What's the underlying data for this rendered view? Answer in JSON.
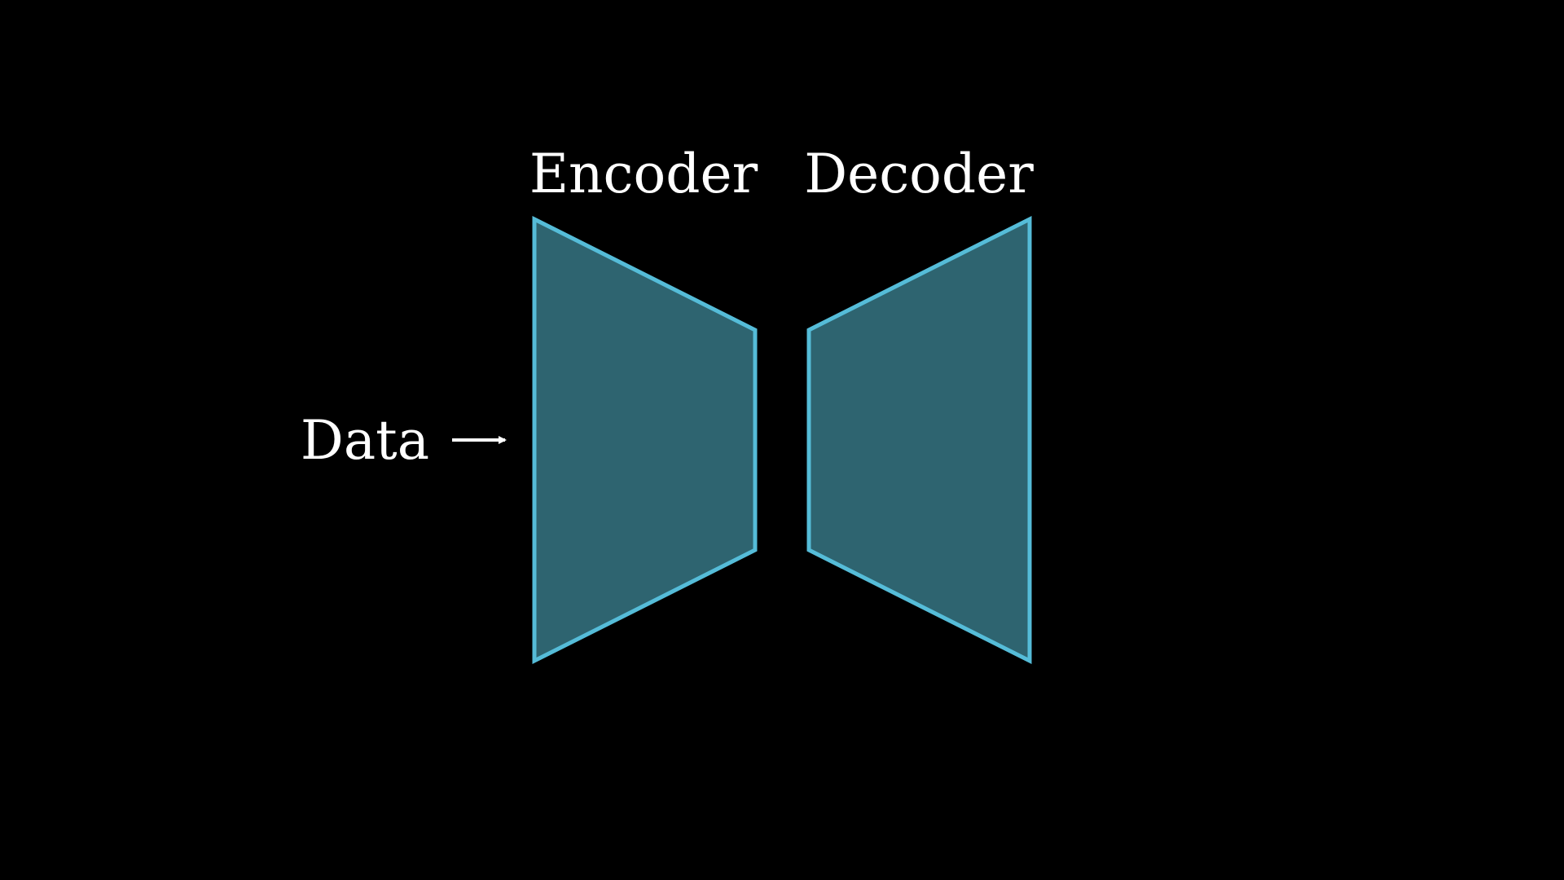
{
  "diagram": {
    "input_label": "Data",
    "encoder_label": "Encoder",
    "decoder_label": "Decoder"
  },
  "colors": {
    "background": "#000000",
    "block_fill": "#2e6470",
    "block_stroke": "#55bcd8",
    "text": "#ffffff"
  }
}
